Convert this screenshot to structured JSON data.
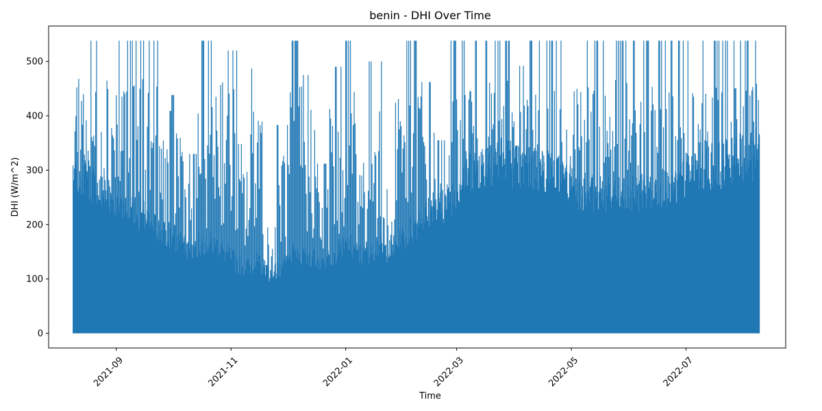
{
  "chart_data": {
    "type": "line",
    "title": "benin - DHI Over Time",
    "xlabel": "Time",
    "ylabel": "DHI (W/m^2)",
    "x_range": [
      "2021-08-09",
      "2022-08-09"
    ],
    "xlim": [
      "2021-07-27",
      "2022-08-23"
    ],
    "ylim": [
      -27,
      565
    ],
    "x_ticks": [
      "2021-09",
      "2021-11",
      "2022-01",
      "2022-03",
      "2022-05",
      "2022-07"
    ],
    "x_tick_dates": [
      "2021-09-01",
      "2021-11-01",
      "2022-01-01",
      "2022-03-01",
      "2022-05-01",
      "2022-07-01"
    ],
    "y_ticks": [
      0,
      100,
      200,
      300,
      400,
      500
    ],
    "grid": false,
    "legend": "none",
    "line_color": "#1f77b4",
    "series": [
      {
        "values_note_skip": "",
        "x": [
          "2021-08-09",
          "2021-08-16",
          "2021-08-23",
          "2021-08-30",
          "2021-09-06",
          "2021-09-13",
          "2021-09-20",
          "2021-09-27",
          "2021-10-04",
          "2021-10-11",
          "2021-10-18",
          "2021-10-25",
          "2021-11-01",
          "2021-11-08",
          "2021-11-15",
          "2021-11-22",
          "2021-11-29",
          "2021-12-06",
          "2021-12-13",
          "2021-12-20",
          "2021-12-27",
          "2022-01-03",
          "2022-01-10",
          "2022-01-17",
          "2022-01-24",
          "2022-01-31",
          "2022-02-07",
          "2022-02-14",
          "2022-02-21",
          "2022-02-28",
          "2022-03-07",
          "2022-03-14",
          "2022-03-21",
          "2022-03-28",
          "2022-04-04",
          "2022-04-11",
          "2022-04-18",
          "2022-04-25",
          "2022-05-02",
          "2022-05-09",
          "2022-05-16",
          "2022-05-23",
          "2022-05-30",
          "2022-06-06",
          "2022-06-13",
          "2022-06-20",
          "2022-06-27",
          "2022-07-04",
          "2022-07-11",
          "2022-07-18",
          "2022-07-25",
          "2022-08-01",
          "2022-08-08"
        ],
        "max": [
          538,
          538,
          538,
          538,
          538,
          538,
          538,
          409,
          438,
          330,
          538,
          538,
          520,
          348,
          487,
          195,
          383,
          538,
          475,
          312,
          490,
          538,
          383,
          500,
          265,
          538,
          538,
          462,
          355,
          538,
          538,
          538,
          538,
          538,
          492,
          538,
          538,
          538,
          538,
          538,
          538,
          538,
          538,
          538,
          538,
          538,
          538,
          538,
          538,
          538,
          538,
          538,
          538
        ],
        "min": [
          0,
          0,
          0,
          0,
          0,
          0,
          0,
          0,
          0,
          0,
          0,
          0,
          0,
          0,
          0,
          0,
          0,
          0,
          0,
          0,
          0,
          0,
          0,
          0,
          0,
          0,
          0,
          0,
          0,
          0,
          0,
          0,
          0,
          0,
          0,
          0,
          0,
          0,
          0,
          0,
          0,
          0,
          0,
          0,
          0,
          0,
          0,
          0,
          0,
          0,
          0,
          0,
          0
        ],
        "dense_top": [
          300,
          290,
          260,
          250,
          230,
          220,
          200,
          180,
          170,
          150,
          170,
          160,
          140,
          120,
          130,
          110,
          120,
          150,
          140,
          130,
          150,
          160,
          140,
          160,
          150,
          170,
          200,
          220,
          230,
          260,
          300,
          310,
          320,
          320,
          300,
          300,
          300,
          290,
          270,
          260,
          250,
          250,
          250,
          260,
          260,
          270,
          270,
          300,
          310,
          310,
          320,
          320,
          330
        ]
      }
    ]
  }
}
